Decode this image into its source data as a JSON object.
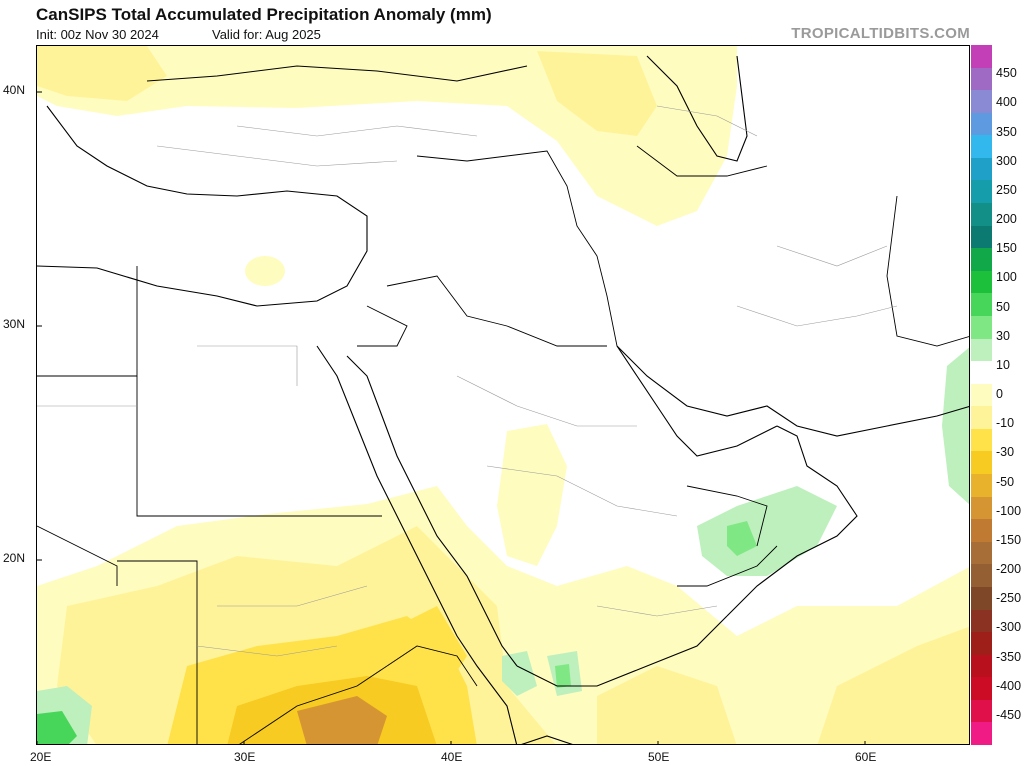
{
  "header": {
    "title": "CanSIPS Total Accumulated Precipitation Anomaly (mm)",
    "init": "Init: 00z Nov 30 2024",
    "valid": "Valid for: Aug 2025",
    "brand": "TROPICALTIDBITS.COM"
  },
  "axes": {
    "lat_labels": [
      "40N",
      "30N",
      "20N"
    ],
    "lon_labels": [
      "20E",
      "30E",
      "40E",
      "50E",
      "60E"
    ]
  },
  "colorbar": {
    "labels": [
      "450",
      "400",
      "350",
      "300",
      "250",
      "200",
      "150",
      "100",
      "50",
      "30",
      "10",
      "0",
      "-10",
      "-30",
      "-50",
      "-100",
      "-150",
      "-200",
      "-250",
      "-300",
      "-350",
      "-400",
      "-450"
    ],
    "colors": [
      "#c23fb8",
      "#9f6ac4",
      "#8a8ad4",
      "#5e9ae0",
      "#33b8ee",
      "#1fa0c8",
      "#159dab",
      "#129088",
      "#0d7a72",
      "#11a84a",
      "#1cc03a",
      "#48d65a",
      "#7fe884",
      "#bdf0bd",
      "#ffffff",
      "#fffcc0",
      "#fff39a",
      "#ffe24a",
      "#f7cb22",
      "#e8b22d",
      "#d59532",
      "#c07a32",
      "#a86e38",
      "#946033",
      "#7d4728",
      "#8c3222",
      "#9e1e1a",
      "#b8101c",
      "#cc0c24",
      "#e0104a",
      "#f01b84"
    ]
  },
  "legend_colors": {
    "plus10": "#bdf0bd",
    "plus30": "#7fe884",
    "minus10": "#fffcc0",
    "minus30": "#fff39a",
    "minus50": "#ffe24a",
    "minus100": "#f7cb22",
    "minus150": "#d59532"
  }
}
